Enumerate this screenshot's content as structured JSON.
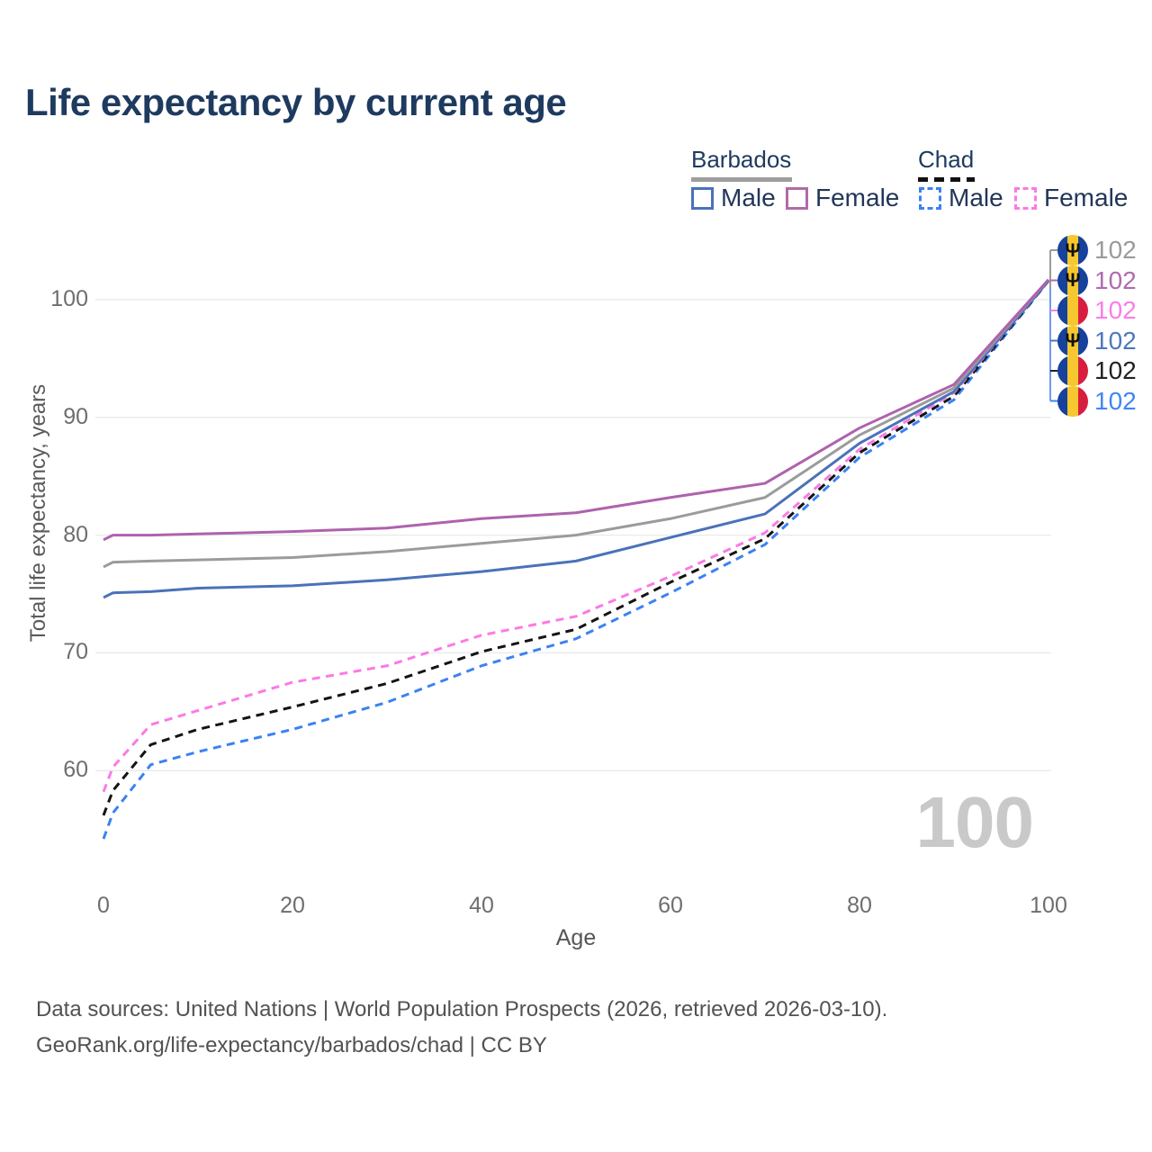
{
  "title": "Life expectancy by current age",
  "legend": {
    "groups": [
      {
        "country": "Barbados",
        "items": [
          {
            "label": "Male"
          },
          {
            "label": "Female"
          }
        ]
      },
      {
        "country": "Chad",
        "items": [
          {
            "label": "Male"
          },
          {
            "label": "Female"
          }
        ]
      }
    ]
  },
  "footer": {
    "line1": "Data sources: United Nations | World Population Prospects (2026, retrieved 2026-03-10).",
    "line2": "GeoRank.org/life-expectancy/barbados/chad | CC BY"
  },
  "chart_data": {
    "type": "line",
    "title": "Life expectancy by current age",
    "xlabel": "Age",
    "ylabel": "Total life expectancy, years",
    "xlim": [
      0,
      100
    ],
    "ylim": [
      54,
      103
    ],
    "grid": "horizontal",
    "age_counter": "100",
    "axes": {
      "yticks": [
        100,
        90,
        80,
        70,
        60
      ],
      "xticks": [
        0,
        20,
        40,
        60,
        80,
        100
      ]
    },
    "ages": [
      0,
      1,
      5,
      10,
      20,
      30,
      40,
      50,
      60,
      70,
      80,
      90,
      100
    ],
    "series": [
      {
        "id": "barbados-female",
        "country": "Barbados",
        "sex": "Female",
        "style": "solid",
        "color": "#ae62ad",
        "values": [
          79.6,
          80.0,
          80.0,
          80.1,
          80.3,
          80.6,
          81.4,
          81.9,
          83.2,
          84.4,
          89.1,
          92.8,
          101.7
        ]
      },
      {
        "id": "barbados-all",
        "country": "Barbados",
        "sex": "All",
        "style": "solid",
        "color": "#9b9b9b",
        "values": [
          77.3,
          77.7,
          77.8,
          77.9,
          78.1,
          78.6,
          79.3,
          80.0,
          81.4,
          83.2,
          88.5,
          92.5,
          101.7
        ]
      },
      {
        "id": "barbados-male",
        "country": "Barbados",
        "sex": "Male",
        "style": "solid",
        "color": "#4a72ba",
        "values": [
          74.7,
          75.1,
          75.2,
          75.5,
          75.7,
          76.2,
          76.9,
          77.8,
          79.8,
          81.8,
          87.8,
          92.2,
          101.6
        ]
      },
      {
        "id": "chad-female",
        "country": "Chad",
        "sex": "Female",
        "style": "dashed",
        "color": "#fb7ae4",
        "values": [
          58.2,
          60.3,
          63.9,
          65.1,
          67.5,
          68.9,
          71.5,
          73.1,
          76.5,
          80.2,
          87.3,
          92.1,
          101.6
        ]
      },
      {
        "id": "chad-all",
        "country": "Chad",
        "sex": "All",
        "style": "dashed",
        "color": "#141414",
        "values": [
          56.2,
          58.3,
          62.2,
          63.5,
          65.4,
          67.4,
          70.1,
          72.0,
          76.0,
          79.7,
          87.0,
          91.8,
          101.6
        ]
      },
      {
        "id": "chad-male",
        "country": "Chad",
        "sex": "Male",
        "style": "dashed",
        "color": "#3b82f2",
        "values": [
          54.2,
          56.4,
          60.5,
          61.6,
          63.5,
          65.8,
          68.9,
          71.2,
          75.1,
          79.2,
          86.6,
          91.5,
          101.6
        ]
      }
    ],
    "right_labels": [
      {
        "series": "barbados-all",
        "flag": "barbados",
        "value": "102",
        "color": "#9a9a9a"
      },
      {
        "series": "barbados-female",
        "flag": "barbados",
        "value": "102",
        "color": "#b06ab0"
      },
      {
        "series": "chad-female",
        "flag": "chad",
        "value": "102",
        "color": "#fc7ce8"
      },
      {
        "series": "barbados-male",
        "flag": "barbados",
        "value": "102",
        "color": "#4f76c0"
      },
      {
        "series": "chad-all",
        "flag": "chad",
        "value": "102",
        "color": "#222222"
      },
      {
        "series": "chad-male",
        "flag": "chad",
        "value": "102",
        "color": "#3f86f5"
      }
    ]
  }
}
